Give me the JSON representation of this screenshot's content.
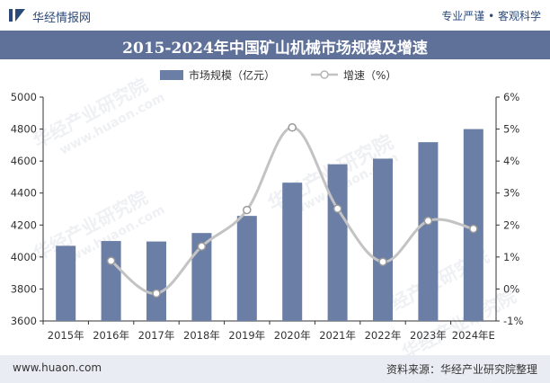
{
  "header": {
    "site_name": "华经情报网",
    "slogan": "专业严谨 • 客观科学"
  },
  "title": "2015-2024年中国矿山机械市场规模及增速",
  "legend": {
    "bar_label": "市场规模（亿元）",
    "line_label": "增速（%）"
  },
  "watermark": {
    "cn": "华经产业研究院",
    "url": "www.huaon.com"
  },
  "footer": {
    "url": "www.huaon.com",
    "source": "资料来源：华经产业研究院整理"
  },
  "colors": {
    "bar": "#6b7ea6",
    "line": "#c3c3c3",
    "title_bg": "#5f7199",
    "footer_bg": "#e9edf3"
  },
  "chart_data": {
    "type": "bar",
    "categories": [
      "2015年",
      "2016年",
      "2017年",
      "2018年",
      "2019年",
      "2020年",
      "2021年",
      "2022年",
      "2023年",
      "2024年E"
    ],
    "series": [
      {
        "name": "市场规模（亿元）",
        "type": "bar",
        "axis": "left",
        "values": [
          4070,
          4100,
          4097,
          4150,
          4257,
          4465,
          4580,
          4615,
          4718,
          4800
        ]
      },
      {
        "name": "增速（%）",
        "type": "line",
        "axis": "right",
        "values": [
          null,
          0.88,
          -0.14,
          1.33,
          2.47,
          5.05,
          2.51,
          0.85,
          2.13,
          1.88
        ]
      }
    ],
    "y_left": {
      "ylim": [
        3600,
        5000
      ],
      "ticks": [
        "3600",
        "3800",
        "4000",
        "4200",
        "4400",
        "4600",
        "4800",
        "5000"
      ]
    },
    "y_right": {
      "ylim": [
        -1,
        6
      ],
      "ticks": [
        "-1%",
        "0%",
        "1%",
        "2%",
        "3%",
        "4%",
        "5%",
        "6%"
      ]
    },
    "grid": false,
    "legend_position": "top"
  }
}
